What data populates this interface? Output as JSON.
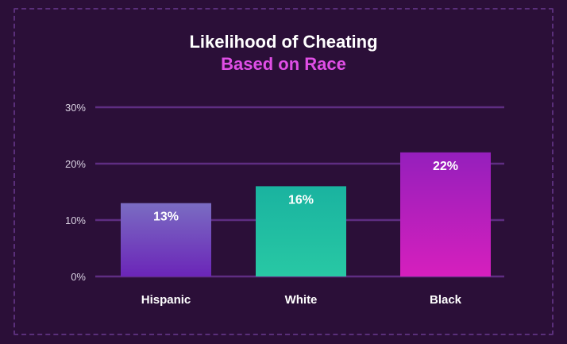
{
  "chart_data": {
    "type": "bar",
    "title": "Likelihood of Cheating",
    "subtitle": "Based on Race",
    "categories": [
      "Hispanic",
      "White",
      "Black"
    ],
    "values": [
      13,
      16,
      22
    ],
    "data_labels": [
      "13%",
      "16%",
      "22%"
    ],
    "ylim": [
      0,
      30
    ],
    "yticks": [
      0,
      10,
      20,
      30
    ],
    "ytick_labels": [
      "0%",
      "10%",
      "20%",
      "30%"
    ],
    "xlabel": "",
    "ylabel": "",
    "grid": true,
    "colors": {
      "background": "#2b0f38",
      "grid": "#5e2d82",
      "title": "#ffffff",
      "subtitle": "#e04ee6",
      "bars": [
        [
          "#7a6cc2",
          "#6b25b8"
        ],
        [
          "#1ab3a0",
          "#28c8a4"
        ],
        [
          "#951fbc",
          "#d61fbd"
        ]
      ]
    }
  }
}
